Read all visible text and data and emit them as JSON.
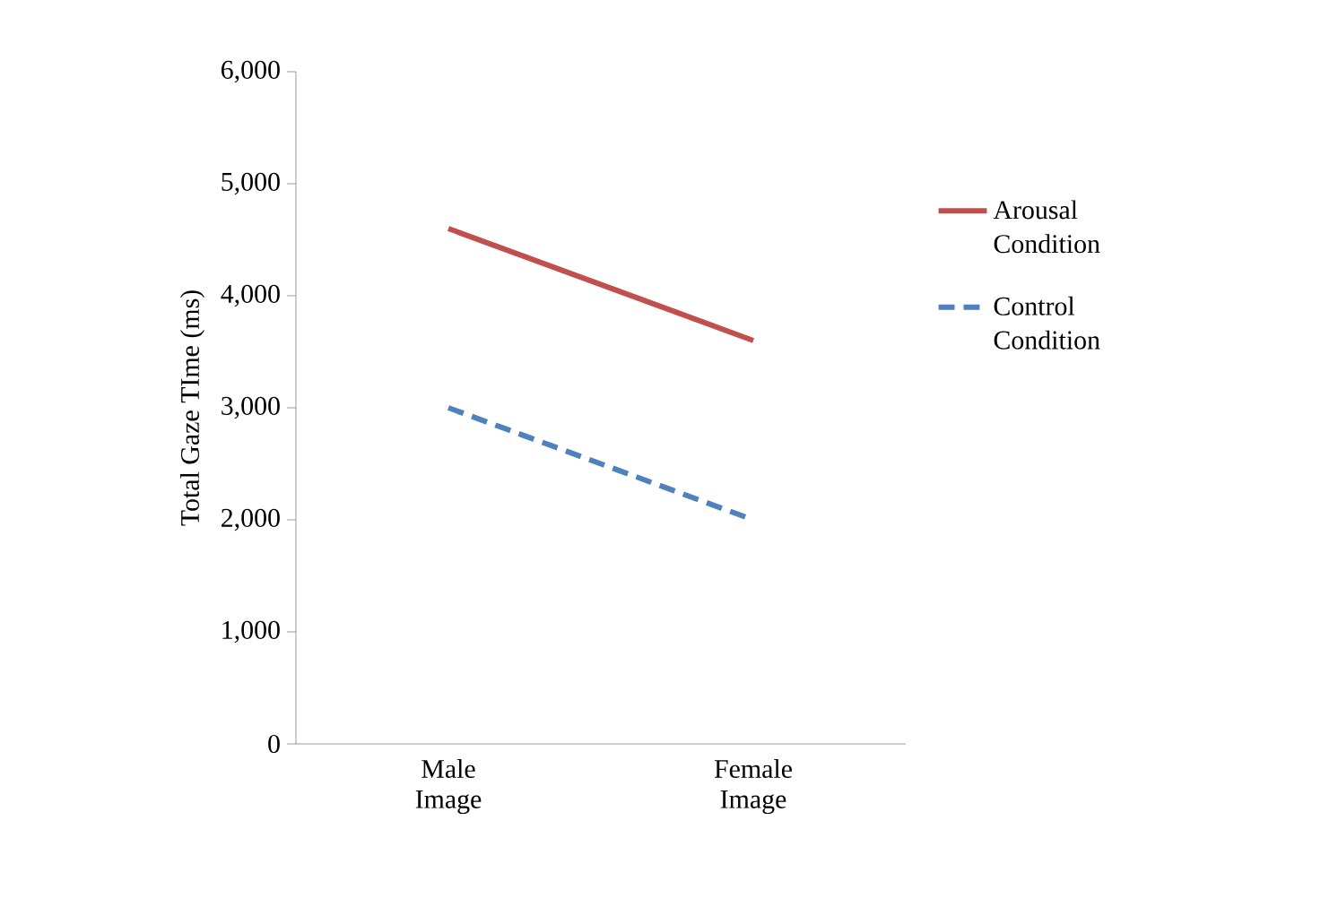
{
  "chart_data": {
    "type": "line",
    "ylabel": "Total Gaze TIme (ms)",
    "categories": [
      "Male Image",
      "Female Image"
    ],
    "series": [
      {
        "name": "Arousal Condition",
        "color": "#c0504d",
        "values": [
          4600,
          3600
        ],
        "line_style": "solid"
      },
      {
        "name": "Control Condition",
        "color": "#4f81bd",
        "values": [
          3000,
          2000
        ],
        "line_style": "dashed"
      }
    ],
    "ylim": [
      0,
      6000
    ],
    "yticks": [
      0,
      {
        "value": 1000,
        "label": "1,000"
      },
      {
        "value": 2000,
        "label": "2,000"
      },
      {
        "value": 3000,
        "label": "3,000"
      },
      {
        "value": 4000,
        "label": "4,000"
      },
      {
        "value": 5000,
        "label": "5,000"
      },
      {
        "value": 6000,
        "label": "6,000"
      }
    ],
    "grid": false,
    "legend": "right",
    "marker": "none"
  }
}
